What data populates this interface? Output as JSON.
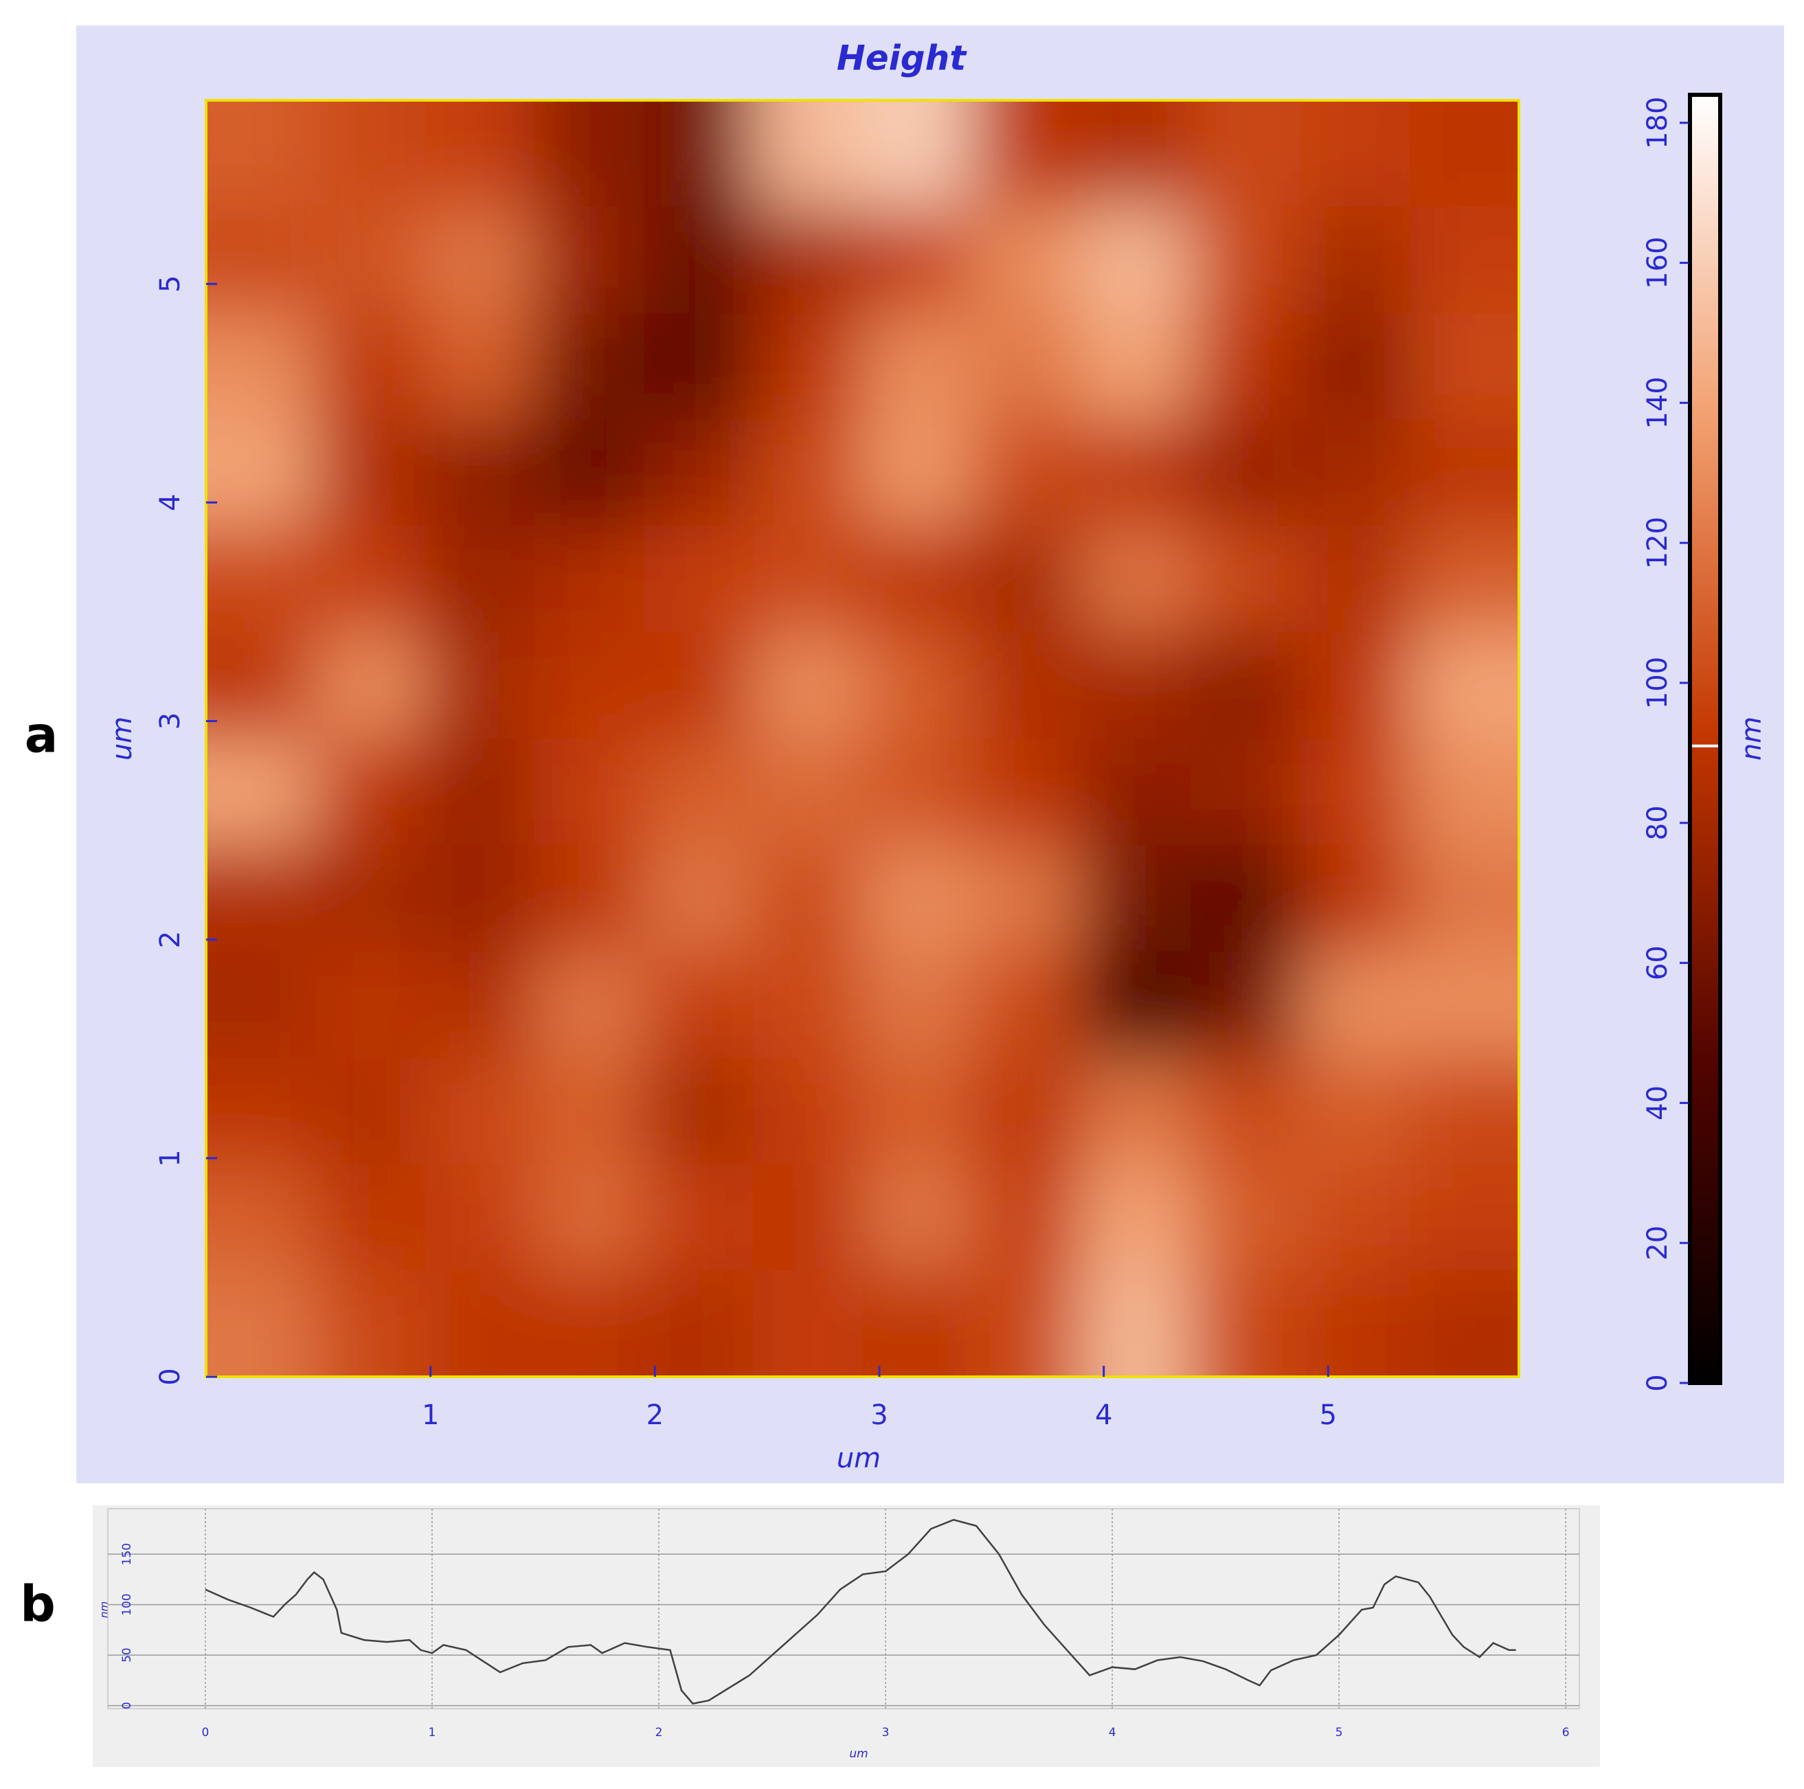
{
  "panel_labels": [
    "a",
    "b"
  ],
  "chart_data": [
    {
      "type": "heatmap",
      "title": "Height",
      "xlabel": "um",
      "ylabel": "um",
      "colorbar_label": "nm",
      "xlim": [
        0,
        5.85
      ],
      "ylim": [
        0,
        5.84
      ],
      "xticks": [
        1,
        2,
        3,
        4,
        5
      ],
      "yticks": [
        0,
        1,
        2,
        3,
        4,
        5
      ],
      "clim": [
        0,
        184
      ],
      "cticks": [
        0,
        20,
        40,
        60,
        80,
        100,
        120,
        140,
        160,
        180
      ],
      "colorbar_marker": 91,
      "colormap": [
        "#000000",
        "#520400",
        "#c23600",
        "#f2a070",
        "#ffffff"
      ],
      "values": [
        [
          110,
          100,
          95,
          70,
          60,
          150,
          160,
          90,
          85,
          100,
          95,
          90
        ],
        [
          100,
          105,
          120,
          75,
          55,
          80,
          95,
          130,
          150,
          100,
          80,
          95
        ],
        [
          130,
          90,
          110,
          60,
          50,
          90,
          130,
          120,
          140,
          90,
          70,
          100
        ],
        [
          140,
          85,
          70,
          55,
          75,
          100,
          135,
          100,
          90,
          75,
          80,
          90
        ],
        [
          100,
          95,
          75,
          85,
          95,
          100,
          90,
          80,
          120,
          100,
          85,
          110
        ],
        [
          90,
          130,
          80,
          90,
          90,
          130,
          110,
          85,
          80,
          70,
          90,
          140
        ],
        [
          140,
          90,
          75,
          95,
          110,
          115,
          105,
          90,
          70,
          75,
          95,
          130
        ],
        [
          85,
          80,
          75,
          90,
          120,
          100,
          130,
          120,
          60,
          50,
          90,
          120
        ],
        [
          80,
          90,
          85,
          120,
          95,
          100,
          120,
          100,
          40,
          60,
          130,
          130
        ],
        [
          90,
          85,
          100,
          110,
          80,
          95,
          110,
          90,
          120,
          100,
          110,
          100
        ],
        [
          110,
          90,
          95,
          115,
          95,
          90,
          120,
          95,
          140,
          110,
          100,
          95
        ],
        [
          120,
          100,
          90,
          90,
          85,
          95,
          90,
          100,
          150,
          100,
          90,
          85
        ]
      ]
    },
    {
      "type": "line",
      "xlabel": "um",
      "ylabel": "nm",
      "color": "#404040",
      "grid": true,
      "xlim": [
        -0.43,
        6.06
      ],
      "ylim": [
        -3,
        195
      ],
      "xticks": [
        0,
        1,
        2,
        3,
        4,
        5,
        6
      ],
      "yticks": [
        0,
        50,
        100,
        150
      ],
      "x": [
        0,
        0.1,
        0.2,
        0.3,
        0.35,
        0.4,
        0.45,
        0.48,
        0.52,
        0.58,
        0.6,
        0.7,
        0.8,
        0.9,
        0.95,
        1.0,
        1.05,
        1.15,
        1.3,
        1.4,
        1.5,
        1.6,
        1.7,
        1.75,
        1.85,
        1.95,
        2.05,
        2.1,
        2.15,
        2.22,
        2.4,
        2.5,
        2.6,
        2.7,
        2.8,
        2.9,
        3.0,
        3.1,
        3.2,
        3.3,
        3.4,
        3.5,
        3.6,
        3.7,
        3.8,
        3.9,
        4.0,
        4.1,
        4.2,
        4.3,
        4.4,
        4.5,
        4.6,
        4.65,
        4.7,
        4.8,
        4.9,
        5.0,
        5.1,
        5.15,
        5.2,
        5.25,
        5.35,
        5.4,
        5.5,
        5.55,
        5.62,
        5.68,
        5.75,
        5.78
      ],
      "values": [
        115,
        105,
        97,
        88,
        100,
        110,
        125,
        132,
        125,
        95,
        72,
        65,
        63,
        65,
        55,
        52,
        60,
        55,
        33,
        42,
        45,
        58,
        60,
        52,
        62,
        58,
        55,
        15,
        2,
        5,
        30,
        50,
        70,
        90,
        115,
        130,
        133,
        150,
        175,
        184,
        178,
        150,
        110,
        80,
        55,
        30,
        38,
        36,
        45,
        48,
        44,
        36,
        25,
        20,
        35,
        45,
        50,
        70,
        95,
        97,
        120,
        128,
        122,
        108,
        70,
        58,
        48,
        62,
        55,
        55
      ]
    }
  ]
}
